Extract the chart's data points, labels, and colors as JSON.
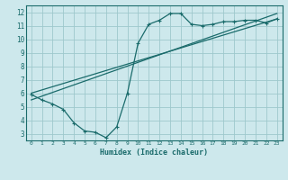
{
  "xlabel": "Humidex (Indice chaleur)",
  "bg_color": "#cde8ec",
  "grid_color": "#9ec8cc",
  "line_color": "#1a6b6b",
  "xlim": [
    -0.5,
    23.5
  ],
  "ylim": [
    2.5,
    12.5
  ],
  "xticks": [
    0,
    1,
    2,
    3,
    4,
    5,
    6,
    7,
    8,
    9,
    10,
    11,
    12,
    13,
    14,
    15,
    16,
    17,
    18,
    19,
    20,
    21,
    22,
    23
  ],
  "yticks": [
    3,
    4,
    5,
    6,
    7,
    8,
    9,
    10,
    11,
    12
  ],
  "line1_x": [
    0,
    1,
    2,
    3,
    4,
    5,
    6,
    7,
    8,
    9,
    10,
    11,
    12,
    13,
    14,
    15,
    16,
    17,
    18,
    19,
    20,
    21,
    22,
    23
  ],
  "line1_y": [
    5.9,
    5.5,
    5.2,
    4.8,
    3.8,
    3.2,
    3.1,
    2.7,
    3.5,
    6.0,
    9.7,
    11.1,
    11.4,
    11.9,
    11.9,
    11.1,
    11.0,
    11.1,
    11.3,
    11.3,
    11.4,
    11.4,
    11.2,
    11.5
  ],
  "line2_x": [
    0,
    23
  ],
  "line2_y": [
    6.0,
    11.5
  ],
  "line3_x": [
    0,
    23
  ],
  "line3_y": [
    5.5,
    11.9
  ]
}
